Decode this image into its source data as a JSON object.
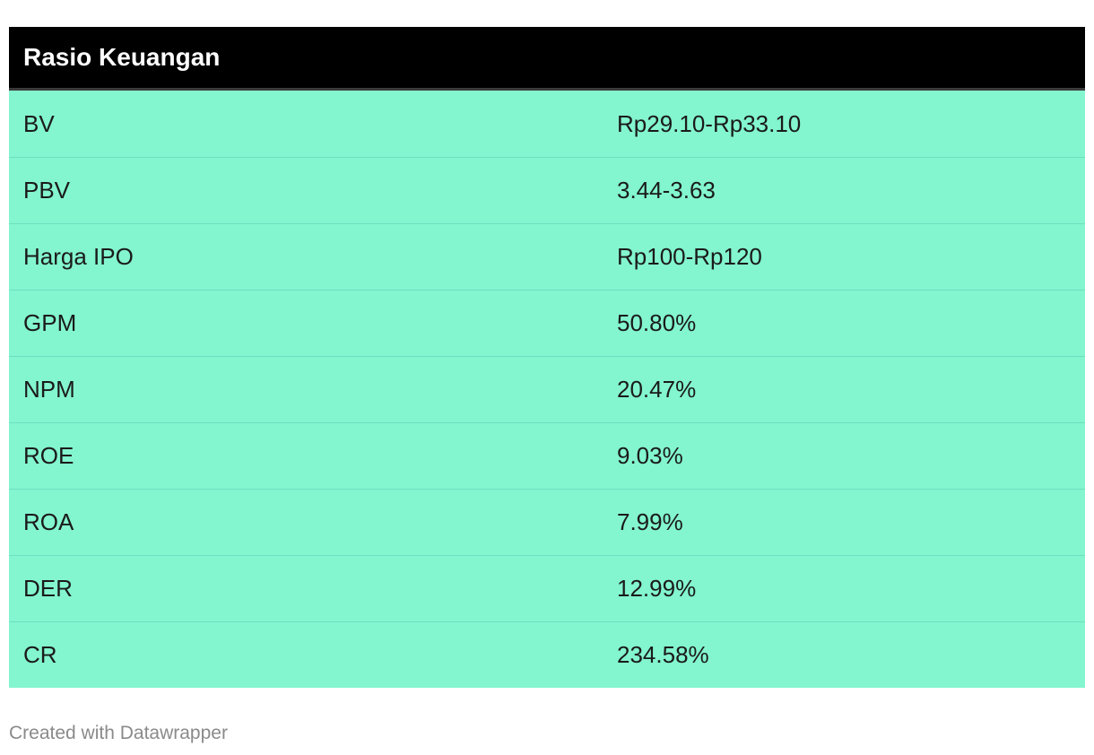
{
  "chart_data": {
    "type": "table",
    "title": "Rasio Keuangan",
    "rows": [
      {
        "label": "BV",
        "value": "Rp29.10-Rp33.10"
      },
      {
        "label": "PBV",
        "value": "3.44-3.63"
      },
      {
        "label": "Harga IPO",
        "value": "Rp100-Rp120"
      },
      {
        "label": "GPM",
        "value": "50.80%"
      },
      {
        "label": "NPM",
        "value": "20.47%"
      },
      {
        "label": "ROE",
        "value": "9.03%"
      },
      {
        "label": "ROA",
        "value": "7.99%"
      },
      {
        "label": "DER",
        "value": "12.99%"
      },
      {
        "label": "CR",
        "value": "234.58%"
      }
    ]
  },
  "colors": {
    "header_bg": "#000000",
    "header_text": "#ffffff",
    "row_bg": "#83f5cf",
    "row_divider": "#6fe0bf",
    "credit_text": "#8a8a8a"
  },
  "footer": {
    "credit": "Created with Datawrapper"
  }
}
